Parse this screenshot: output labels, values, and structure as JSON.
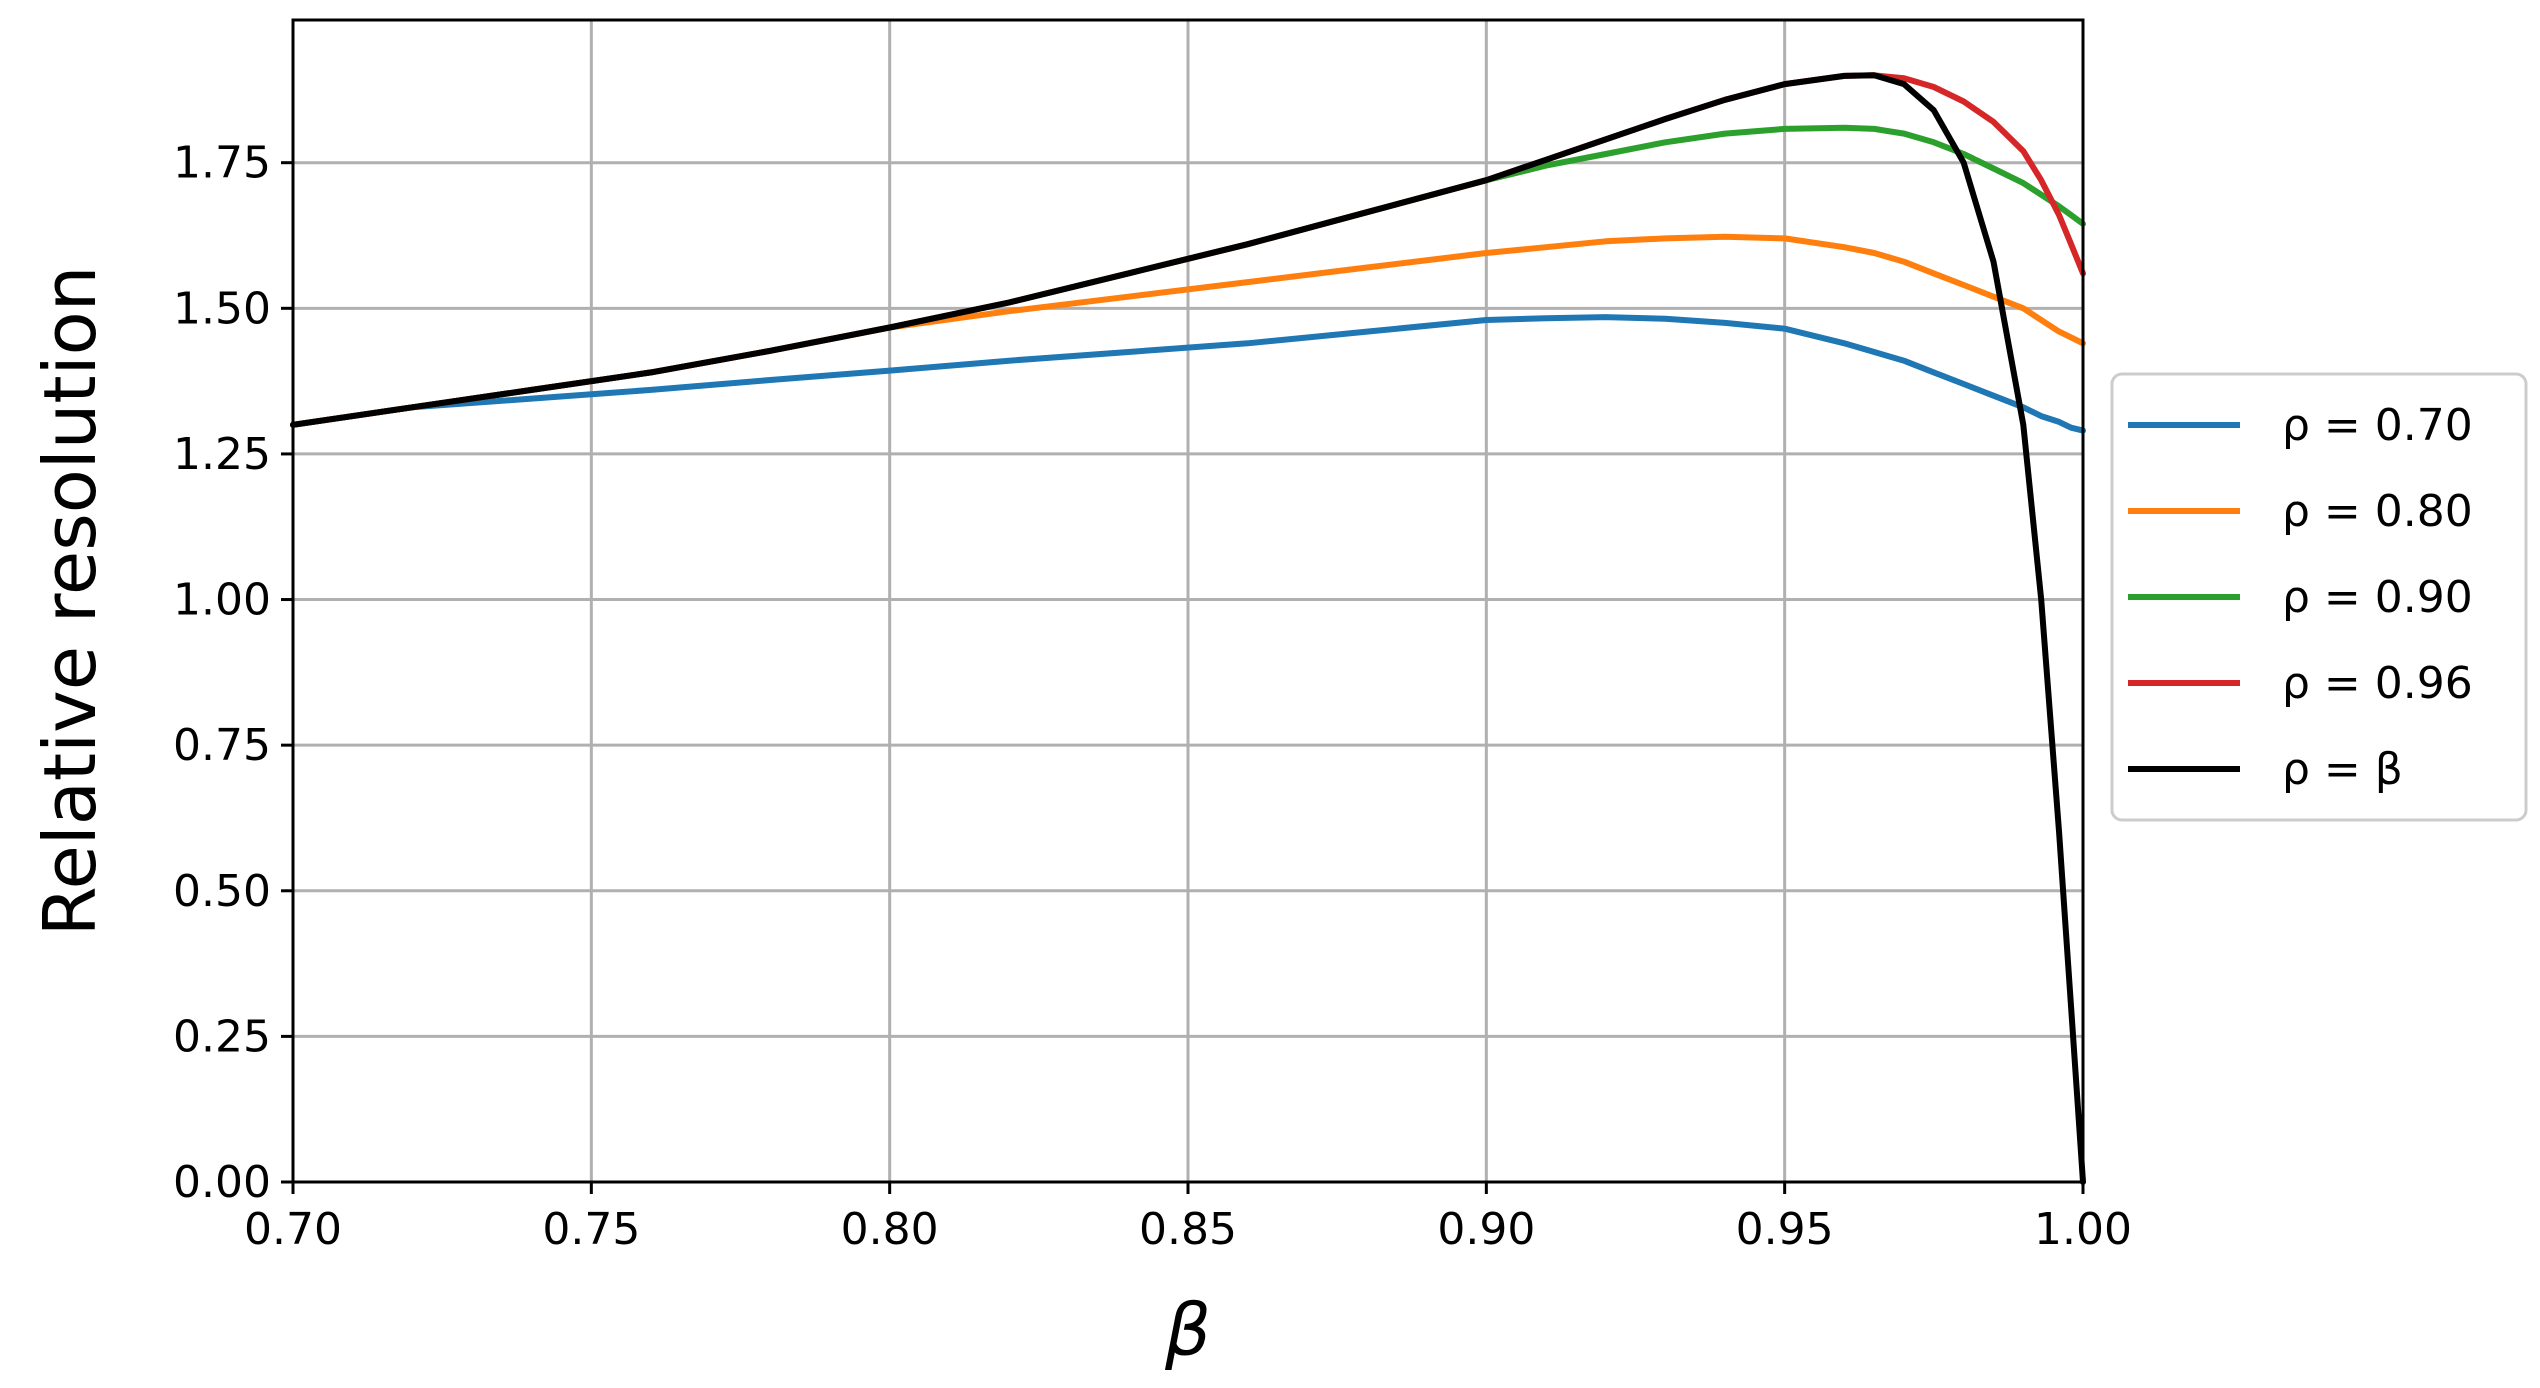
{
  "chart_data": {
    "type": "line",
    "xlabel": "β",
    "ylabel": "Relative resolution",
    "xlim": [
      0.7,
      1.0
    ],
    "ylim": [
      0.0,
      2.0
    ],
    "xticks": [
      "0.70",
      "0.75",
      "0.80",
      "0.85",
      "0.90",
      "0.95",
      "1.00"
    ],
    "yticks": [
      "0.00",
      "0.25",
      "0.50",
      "0.75",
      "1.00",
      "1.25",
      "1.50",
      "1.75"
    ],
    "grid": true,
    "legend_position": "right, outside plot",
    "x": [
      0.7,
      0.72,
      0.74,
      0.76,
      0.78,
      0.8,
      0.82,
      0.84,
      0.86,
      0.88,
      0.9,
      0.91,
      0.92,
      0.93,
      0.94,
      0.95,
      0.96,
      0.965,
      0.97,
      0.975,
      0.98,
      0.985,
      0.99,
      0.993,
      0.996,
      0.998,
      1.0
    ],
    "series": [
      {
        "name": "ρ = 0.70",
        "color": "#1f77b4",
        "values": [
          1.3,
          1.33,
          1.345,
          1.36,
          1.377,
          1.393,
          1.41,
          1.425,
          1.44,
          1.46,
          1.48,
          1.483,
          1.485,
          1.482,
          1.475,
          1.465,
          1.44,
          1.425,
          1.41,
          1.39,
          1.37,
          1.35,
          1.33,
          1.315,
          1.305,
          1.295,
          1.29
        ]
      },
      {
        "name": "ρ = 0.80",
        "color": "#ff7f0e",
        "values": [
          1.3,
          1.33,
          1.36,
          1.39,
          1.427,
          1.467,
          1.495,
          1.52,
          1.545,
          1.57,
          1.595,
          1.605,
          1.615,
          1.62,
          1.623,
          1.62,
          1.605,
          1.595,
          1.58,
          1.56,
          1.54,
          1.52,
          1.5,
          1.48,
          1.46,
          1.45,
          1.44
        ]
      },
      {
        "name": "ρ = 0.90",
        "color": "#2ca02c",
        "values": [
          1.3,
          1.33,
          1.36,
          1.39,
          1.427,
          1.467,
          1.51,
          1.56,
          1.61,
          1.665,
          1.72,
          1.745,
          1.765,
          1.785,
          1.8,
          1.808,
          1.81,
          1.808,
          1.8,
          1.785,
          1.765,
          1.74,
          1.715,
          1.695,
          1.675,
          1.66,
          1.645
        ]
      },
      {
        "name": "ρ = 0.96",
        "color": "#d62728",
        "values": [
          1.3,
          1.33,
          1.36,
          1.39,
          1.427,
          1.467,
          1.51,
          1.56,
          1.61,
          1.665,
          1.72,
          1.755,
          1.79,
          1.825,
          1.858,
          1.885,
          1.899,
          1.9,
          1.895,
          1.88,
          1.855,
          1.82,
          1.77,
          1.72,
          1.66,
          1.61,
          1.56
        ]
      },
      {
        "name": "ρ = β",
        "color": "#000000",
        "values": [
          1.3,
          1.33,
          1.36,
          1.39,
          1.427,
          1.467,
          1.51,
          1.56,
          1.61,
          1.665,
          1.72,
          1.755,
          1.79,
          1.825,
          1.858,
          1.885,
          1.899,
          1.9,
          1.885,
          1.84,
          1.75,
          1.58,
          1.3,
          1.0,
          0.6,
          0.3,
          0.0
        ]
      }
    ]
  }
}
